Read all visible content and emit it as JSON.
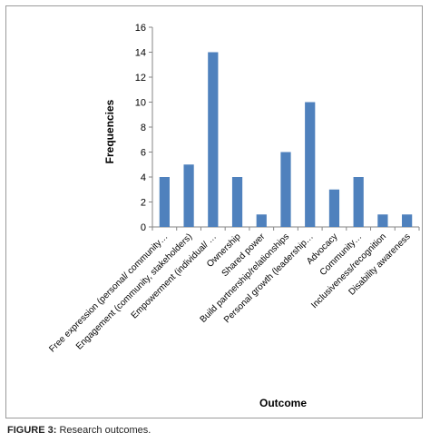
{
  "figure": {
    "caption_label": "FIGURE 3:",
    "caption_text": " Research outcomes."
  },
  "chart_data": {
    "type": "bar",
    "title": "",
    "xlabel": "Outcome",
    "ylabel": "Frequencies",
    "ylim": [
      0,
      16
    ],
    "yticks": [
      0,
      2,
      4,
      6,
      8,
      10,
      12,
      14,
      16
    ],
    "grid": false,
    "legend": "none",
    "bar_color": "#4f81bd",
    "categories": [
      "Free expression (personal/ community…",
      "Engagement (community, stakeholders)",
      "Empowerment (individual/ …",
      "Ownership",
      "Shared power",
      "Build partnership/relationships",
      "Personal growth (leadership…",
      "Advocacy",
      "Community…",
      "Inclusiveness/recognition",
      "Disability awareness"
    ],
    "values": [
      4,
      5,
      14,
      4,
      1,
      6,
      10,
      3,
      4,
      1,
      1
    ]
  }
}
